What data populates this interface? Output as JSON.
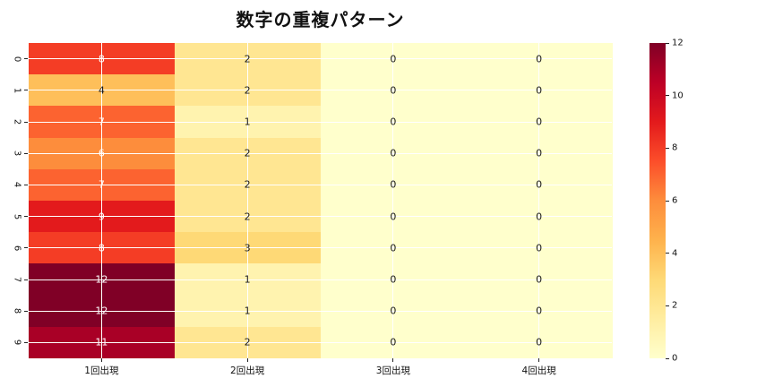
{
  "title": "数字の重複パターン",
  "chart_data": {
    "type": "heatmap",
    "title": "数字の重複パターン",
    "rows": [
      "0",
      "1",
      "2",
      "3",
      "4",
      "5",
      "6",
      "7",
      "8",
      "9"
    ],
    "columns": [
      "1回出現",
      "2回出現",
      "3回出現",
      "4回出現"
    ],
    "values": [
      [
        8,
        2,
        0,
        0
      ],
      [
        4,
        2,
        0,
        0
      ],
      [
        7,
        1,
        0,
        0
      ],
      [
        6,
        2,
        0,
        0
      ],
      [
        7,
        2,
        0,
        0
      ],
      [
        9,
        2,
        0,
        0
      ],
      [
        8,
        3,
        0,
        0
      ],
      [
        12,
        1,
        0,
        0
      ],
      [
        12,
        1,
        0,
        0
      ],
      [
        11,
        2,
        0,
        0
      ]
    ],
    "vmin": 0,
    "vmax": 12,
    "colormap": "YlOrRd",
    "colormap_stops": [
      "#ffffcc",
      "#ffeda0",
      "#fed976",
      "#feb24c",
      "#fd8d3c",
      "#fc4e2a",
      "#e31a1c",
      "#bd0026",
      "#800026"
    ],
    "colorbar_ticks": [
      0,
      2,
      4,
      6,
      8,
      10,
      12
    ],
    "annot_white_min": 6,
    "annot_dark_color": "#1a1a1a",
    "annot_light_color": "#ffffff",
    "grid": true,
    "legend_position": "right-colorbar"
  }
}
